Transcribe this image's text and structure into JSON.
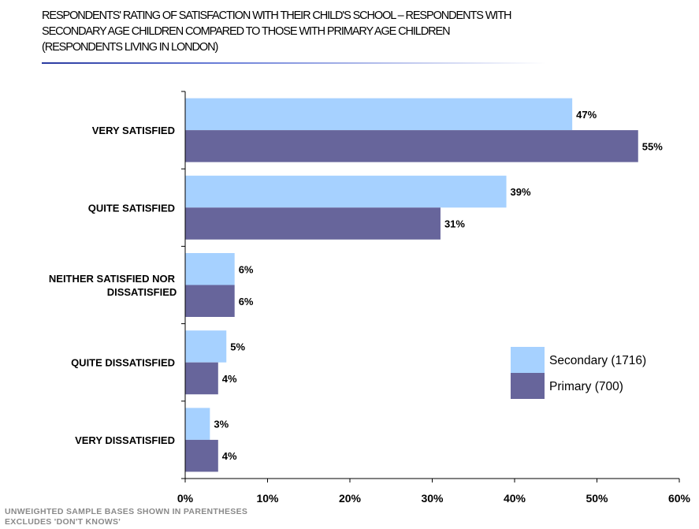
{
  "title_lines": [
    "RESPONDENTS' RATING OF SATISFACTION WITH THEIR CHILD'S SCHOOL – RESPONDENTS WITH",
    "SECONDARY AGE CHILDREN COMPARED TO THOSE WITH PRIMARY AGE CHILDREN",
    "(RESPONDENTS LIVING IN LONDON)"
  ],
  "footnotes": [
    "UNWEIGHTED SAMPLE BASES SHOWN IN PARENTHESES",
    "EXCLUDES 'DON'T KNOWS'"
  ],
  "colors": {
    "secondary": "#a6d1ff",
    "primary": "#67659b",
    "title_rule": "#2a3aa0"
  },
  "chart_data": {
    "type": "bar",
    "orientation": "horizontal",
    "categories": [
      "VERY SATISFIED",
      "QUITE SATISFIED",
      "NEITHER SATISFIED NOR DISSATISFIED",
      "QUITE DISSATISFIED",
      "VERY DISSATISFIED"
    ],
    "category_label_lines": [
      [
        "VERY SATISFIED"
      ],
      [
        "QUITE SATISFIED"
      ],
      [
        "NEITHER SATISFIED NOR",
        "DISSATISFIED"
      ],
      [
        "QUITE DISSATISFIED"
      ],
      [
        "VERY DISSATISFIED"
      ]
    ],
    "series": [
      {
        "name": "Secondary (1716)",
        "values": [
          47,
          39,
          6,
          5,
          3
        ]
      },
      {
        "name": "Primary (700)",
        "values": [
          55,
          31,
          6,
          4,
          4
        ]
      }
    ],
    "value_suffix": "%",
    "xlim": [
      0,
      60
    ],
    "xticks": [
      0,
      10,
      20,
      30,
      40,
      50,
      60
    ],
    "xtick_labels": [
      "0%",
      "10%",
      "20%",
      "30%",
      "40%",
      "50%",
      "60%"
    ],
    "grid": false,
    "legend_position": "right"
  }
}
